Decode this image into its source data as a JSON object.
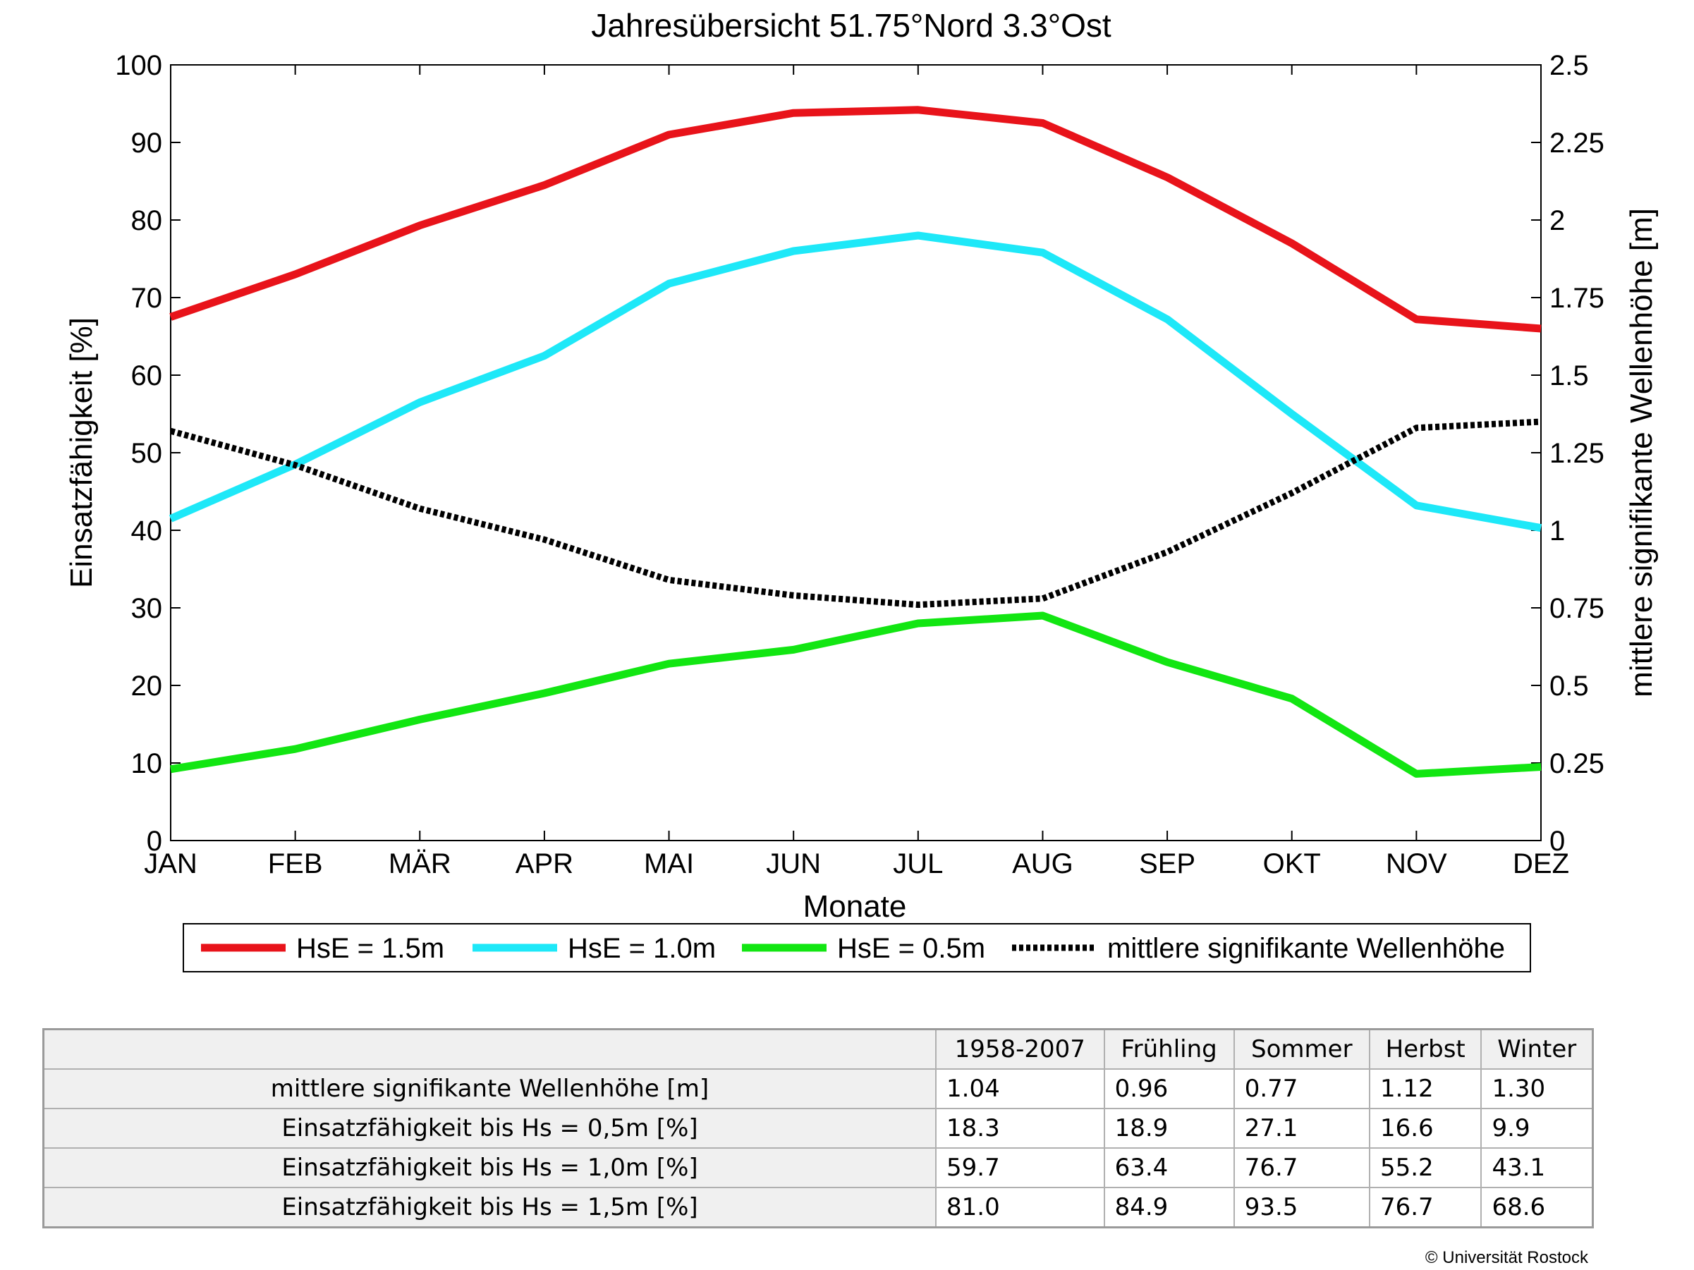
{
  "chart_data": {
    "type": "line",
    "title": "Jahresübersicht  51.75°Nord  3.3°Ost",
    "xlabel": "Monate",
    "ylabel": "Einsatzfähigkeit [%]",
    "y2label": "mittlere signifikante Wellenhöhe [m]",
    "categories": [
      "JAN",
      "FEB",
      "MÄR",
      "APR",
      "MAI",
      "JUN",
      "JUL",
      "AUG",
      "SEP",
      "OKT",
      "NOV",
      "DEZ"
    ],
    "ylim": [
      0,
      100
    ],
    "yticks": [
      "0",
      "10",
      "20",
      "30",
      "40",
      "50",
      "60",
      "70",
      "80",
      "90",
      "100"
    ],
    "y2lim": [
      0,
      2.5
    ],
    "y2ticks": [
      "0",
      "0.25",
      "0.5",
      "0.75",
      "1",
      "1.25",
      "1.5",
      "1.75",
      "2",
      "2.25",
      "2.5"
    ],
    "grid": false,
    "legend_position": "bottom",
    "series": [
      {
        "name": "HsE = 1.5m",
        "color": "#e8131a",
        "axis": "left",
        "style": "solid",
        "values": [
          67.5,
          73.0,
          79.3,
          84.5,
          91.0,
          93.8,
          94.2,
          92.5,
          85.5,
          77.0,
          67.2,
          66.0
        ]
      },
      {
        "name": "HsE = 1.0m",
        "color": "#1ee8f8",
        "axis": "left",
        "style": "solid",
        "values": [
          41.5,
          48.5,
          56.5,
          62.5,
          71.8,
          76.0,
          78.0,
          75.8,
          67.2,
          55.0,
          43.2,
          40.3
        ]
      },
      {
        "name": "HsE = 0.5m",
        "color": "#12e612",
        "axis": "left",
        "style": "solid",
        "values": [
          9.2,
          11.8,
          15.6,
          19.0,
          22.8,
          24.6,
          28.0,
          29.0,
          23.0,
          18.3,
          8.6,
          9.5
        ]
      },
      {
        "name": "mittlere signifikante Wellenhöhe",
        "color": "#000000",
        "axis": "right",
        "style": "dotted",
        "values": [
          1.32,
          1.21,
          1.07,
          0.97,
          0.84,
          0.79,
          0.76,
          0.78,
          0.93,
          1.12,
          1.33,
          1.35
        ]
      }
    ]
  },
  "table": {
    "headers": [
      "1958-2007",
      "Frühling",
      "Sommer",
      "Herbst",
      "Winter"
    ],
    "rows": [
      {
        "label": "mittlere signifikante Wellenhöhe [m]",
        "values": [
          "1.04",
          "0.96",
          "0.77",
          "1.12",
          "1.30"
        ]
      },
      {
        "label": "Einsatzfähigkeit bis Hs = 0,5m [%]",
        "values": [
          "18.3",
          "18.9",
          "27.1",
          "16.6",
          " 9.9"
        ]
      },
      {
        "label": "Einsatzfähigkeit bis Hs = 1,0m [%]",
        "values": [
          "59.7",
          "63.4",
          "76.7",
          "55.2",
          "43.1"
        ]
      },
      {
        "label": "Einsatzfähigkeit bis Hs = 1,5m [%]",
        "values": [
          "81.0",
          "84.9",
          "93.5",
          "76.7",
          "68.6"
        ]
      }
    ]
  },
  "copyright": "© Universität Rostock"
}
